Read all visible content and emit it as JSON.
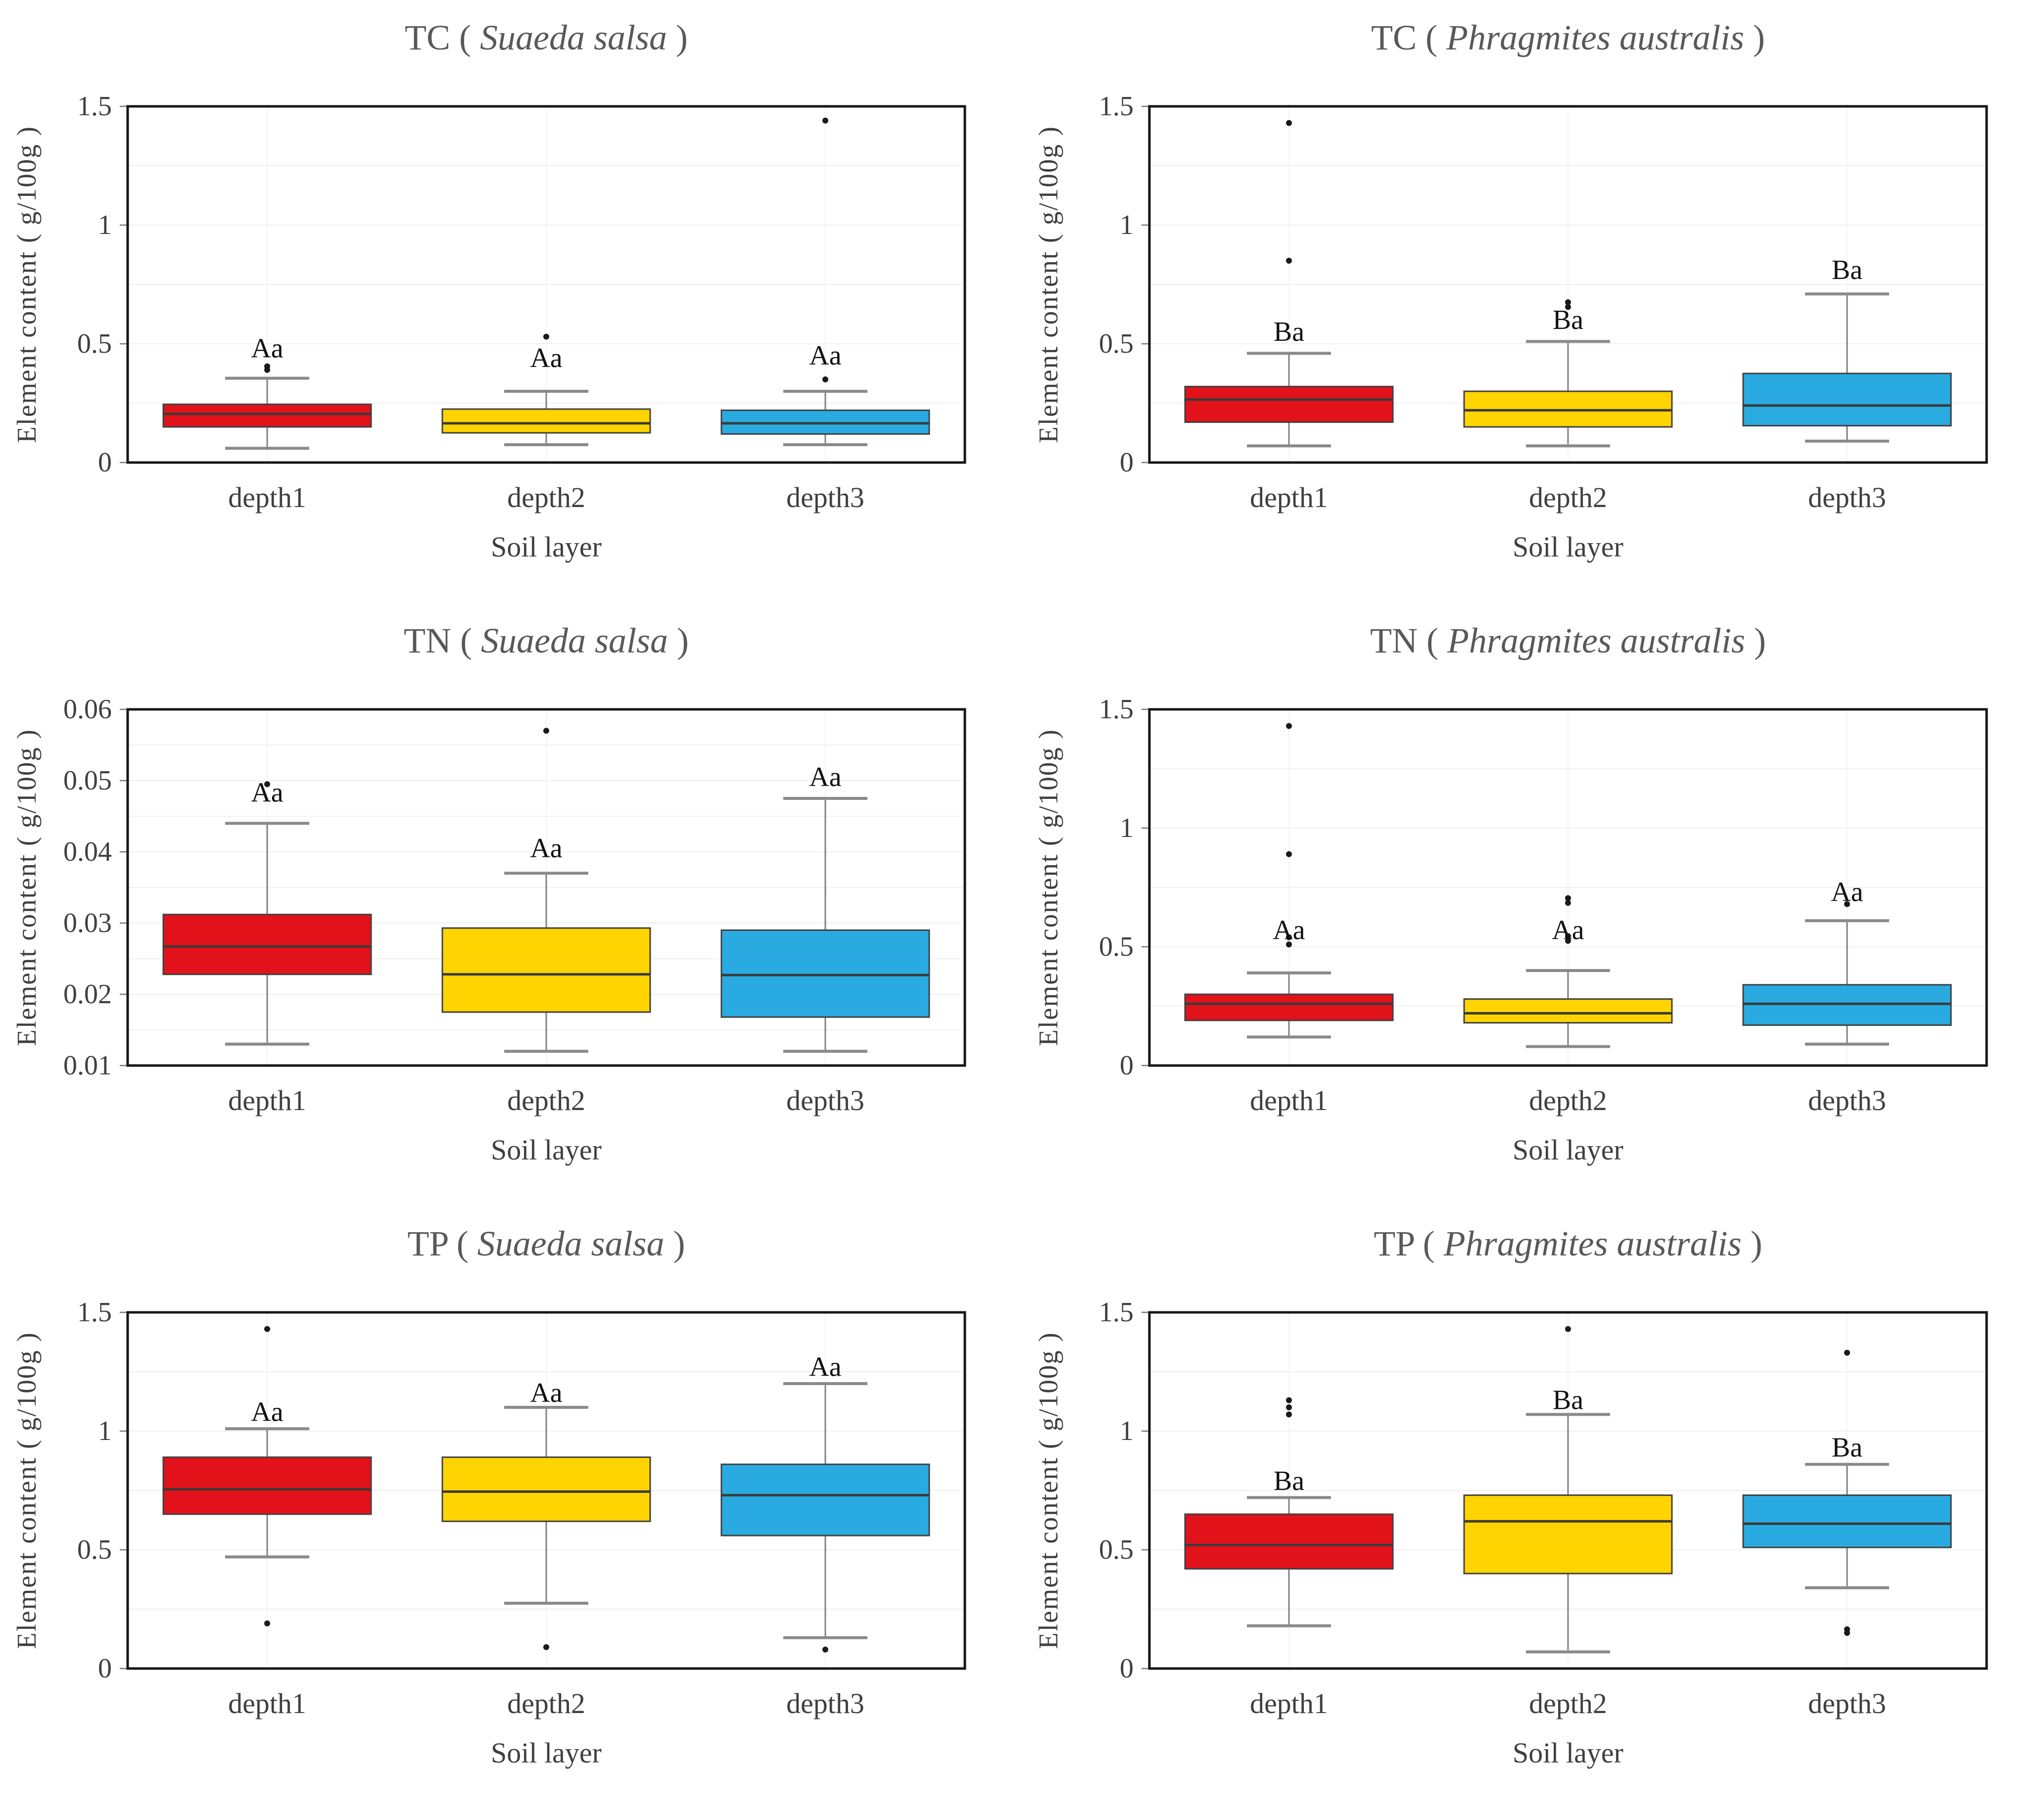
{
  "figure": {
    "xlabel": "Soil layer",
    "ylabel": "Element content ( g/100g )",
    "categories": [
      "depth1",
      "depth2",
      "depth3"
    ],
    "box_colors": [
      "#e2121b",
      "#ffd400",
      "#29abe2"
    ],
    "style_colors": {
      "title": "#595959",
      "axis_text": "#3f3f3f",
      "sig_label": "#111111",
      "box_stroke": "#404040",
      "median": "#3a3a3a",
      "whisker": "#7f7f7f",
      "border": "#161616",
      "gridline": "#efefef",
      "vgridline": "#f3f3f3",
      "outlier": "#1a1a1a"
    }
  },
  "chart_data": [
    {
      "type": "box",
      "title": {
        "element": "TC",
        "open": "(",
        "species": "Suaeda salsa",
        "close": ")"
      },
      "xlabel": "Soil layer",
      "ylabel": "Element content ( g/100g )",
      "ylim": [
        0,
        1.5
      ],
      "grid_step": 0.25,
      "yticks": [
        {
          "v": 0,
          "label": "0"
        },
        {
          "v": 0.5,
          "label": "0.5"
        },
        {
          "v": 1,
          "label": "1"
        },
        {
          "v": 1.5,
          "label": "1.5"
        }
      ],
      "categories": [
        "depth1",
        "depth2",
        "depth3"
      ],
      "boxes": [
        {
          "category": "depth1",
          "color": "#e2121b",
          "whisker_low": 0.06,
          "q1": 0.15,
          "median": 0.205,
          "q3": 0.245,
          "whisker_high": 0.355,
          "outliers": [
            0.39,
            0.405
          ],
          "sig_label": "Aa",
          "sig_label_y": 0.48
        },
        {
          "category": "depth2",
          "color": "#ffd400",
          "whisker_low": 0.075,
          "q1": 0.125,
          "median": 0.165,
          "q3": 0.225,
          "whisker_high": 0.3,
          "outliers": [
            0.53
          ],
          "sig_label": "Aa",
          "sig_label_y": 0.44
        },
        {
          "category": "depth3",
          "color": "#29abe2",
          "whisker_low": 0.075,
          "q1": 0.12,
          "median": 0.165,
          "q3": 0.22,
          "whisker_high": 0.3,
          "outliers": [
            0.35,
            1.44
          ],
          "sig_label": "Aa",
          "sig_label_y": 0.45
        }
      ]
    },
    {
      "type": "box",
      "title": {
        "element": "TC",
        "open": "(",
        "species": "Phragmites australis",
        "close": ")"
      },
      "xlabel": "Soil layer",
      "ylabel": "Element content ( g/100g )",
      "ylim": [
        0,
        1.5
      ],
      "grid_step": 0.25,
      "yticks": [
        {
          "v": 0,
          "label": "0"
        },
        {
          "v": 0.5,
          "label": "0.5"
        },
        {
          "v": 1,
          "label": "1"
        },
        {
          "v": 1.5,
          "label": "1.5"
        }
      ],
      "categories": [
        "depth1",
        "depth2",
        "depth3"
      ],
      "boxes": [
        {
          "category": "depth1",
          "color": "#e2121b",
          "whisker_low": 0.07,
          "q1": 0.17,
          "median": 0.265,
          "q3": 0.32,
          "whisker_high": 0.46,
          "outliers": [
            0.85,
            1.43
          ],
          "sig_label": "Ba",
          "sig_label_y": 0.55
        },
        {
          "category": "depth2",
          "color": "#ffd400",
          "whisker_low": 0.07,
          "q1": 0.15,
          "median": 0.22,
          "q3": 0.3,
          "whisker_high": 0.51,
          "outliers": [
            0.655,
            0.675
          ],
          "sig_label": "Ba",
          "sig_label_y": 0.6
        },
        {
          "category": "depth3",
          "color": "#29abe2",
          "whisker_low": 0.09,
          "q1": 0.155,
          "median": 0.24,
          "q3": 0.375,
          "whisker_high": 0.71,
          "outliers": [],
          "sig_label": "Ba",
          "sig_label_y": 0.81
        }
      ]
    },
    {
      "type": "box",
      "title": {
        "element": "TN",
        "open": "(",
        "species": "Suaeda salsa",
        "close": ")"
      },
      "xlabel": "Soil layer",
      "ylabel": "Element content ( g/100g )",
      "ylim": [
        0.01,
        0.06
      ],
      "grid_step": 0.005,
      "yticks": [
        {
          "v": 0.01,
          "label": "0.01"
        },
        {
          "v": 0.02,
          "label": "0.02"
        },
        {
          "v": 0.03,
          "label": "0.03"
        },
        {
          "v": 0.04,
          "label": "0.04"
        },
        {
          "v": 0.05,
          "label": "0.05"
        },
        {
          "v": 0.06,
          "label": "0.06"
        }
      ],
      "categories": [
        "depth1",
        "depth2",
        "depth3"
      ],
      "boxes": [
        {
          "category": "depth1",
          "color": "#e2121b",
          "whisker_low": 0.013,
          "q1": 0.0228,
          "median": 0.0267,
          "q3": 0.0312,
          "whisker_high": 0.044,
          "outliers": [
            0.0495
          ],
          "sig_label": "Aa",
          "sig_label_y": 0.0483
        },
        {
          "category": "depth2",
          "color": "#ffd400",
          "whisker_low": 0.012,
          "q1": 0.0175,
          "median": 0.0228,
          "q3": 0.0293,
          "whisker_high": 0.037,
          "outliers": [
            0.057
          ],
          "sig_label": "Aa",
          "sig_label_y": 0.0405
        },
        {
          "category": "depth3",
          "color": "#29abe2",
          "whisker_low": 0.012,
          "q1": 0.0168,
          "median": 0.0227,
          "q3": 0.029,
          "whisker_high": 0.0475,
          "outliers": [],
          "sig_label": "Aa",
          "sig_label_y": 0.0505
        }
      ]
    },
    {
      "type": "box",
      "title": {
        "element": "TN",
        "open": "(",
        "species": "Phragmites australis",
        "close": ")"
      },
      "xlabel": "Soil layer",
      "ylabel": "Element content ( g/100g )",
      "ylim": [
        0,
        1.5
      ],
      "grid_step": 0.25,
      "yticks": [
        {
          "v": 0,
          "label": "0"
        },
        {
          "v": 0.5,
          "label": "0.5"
        },
        {
          "v": 1,
          "label": "1"
        },
        {
          "v": 1.5,
          "label": "1.5"
        }
      ],
      "categories": [
        "depth1",
        "depth2",
        "depth3"
      ],
      "boxes": [
        {
          "category": "depth1",
          "color": "#e2121b",
          "whisker_low": 0.12,
          "q1": 0.19,
          "median": 0.26,
          "q3": 0.3,
          "whisker_high": 0.39,
          "outliers": [
            0.51,
            0.54,
            0.89,
            1.43
          ],
          "sig_label": "Aa",
          "sig_label_y": 0.57
        },
        {
          "category": "depth2",
          "color": "#ffd400",
          "whisker_low": 0.08,
          "q1": 0.18,
          "median": 0.22,
          "q3": 0.28,
          "whisker_high": 0.4,
          "outliers": [
            0.525,
            0.545,
            0.685,
            0.705
          ],
          "sig_label": "Aa",
          "sig_label_y": 0.57
        },
        {
          "category": "depth3",
          "color": "#29abe2",
          "whisker_low": 0.09,
          "q1": 0.17,
          "median": 0.26,
          "q3": 0.34,
          "whisker_high": 0.61,
          "outliers": [
            0.68
          ],
          "sig_label": "Aa",
          "sig_label_y": 0.73
        }
      ]
    },
    {
      "type": "box",
      "title": {
        "element": "TP",
        "open": "(",
        "species": "Suaeda salsa",
        "close": ")"
      },
      "xlabel": "Soil layer",
      "ylabel": "Element content ( g/100g )",
      "ylim": [
        0,
        1.5
      ],
      "grid_step": 0.25,
      "yticks": [
        {
          "v": 0,
          "label": "0"
        },
        {
          "v": 0.5,
          "label": "0.5"
        },
        {
          "v": 1,
          "label": "1"
        },
        {
          "v": 1.5,
          "label": "1.5"
        }
      ],
      "categories": [
        "depth1",
        "depth2",
        "depth3"
      ],
      "boxes": [
        {
          "category": "depth1",
          "color": "#e2121b",
          "whisker_low": 0.47,
          "q1": 0.65,
          "median": 0.755,
          "q3": 0.89,
          "whisker_high": 1.01,
          "outliers": [
            0.19,
            1.43
          ],
          "sig_label": "Aa",
          "sig_label_y": 1.08
        },
        {
          "category": "depth2",
          "color": "#ffd400",
          "whisker_low": 0.275,
          "q1": 0.62,
          "median": 0.745,
          "q3": 0.89,
          "whisker_high": 1.1,
          "outliers": [
            0.09
          ],
          "sig_label": "Aa",
          "sig_label_y": 1.16
        },
        {
          "category": "depth3",
          "color": "#29abe2",
          "whisker_low": 0.13,
          "q1": 0.56,
          "median": 0.73,
          "q3": 0.86,
          "whisker_high": 1.2,
          "outliers": [
            0.08
          ],
          "sig_label": "Aa",
          "sig_label_y": 1.27
        }
      ]
    },
    {
      "type": "box",
      "title": {
        "element": "TP",
        "open": "(",
        "species": "Phragmites australis",
        "close": ")"
      },
      "xlabel": "Soil layer",
      "ylabel": "Element content ( g/100g )",
      "ylim": [
        0,
        1.5
      ],
      "grid_step": 0.25,
      "yticks": [
        {
          "v": 0,
          "label": "0"
        },
        {
          "v": 0.5,
          "label": "0.5"
        },
        {
          "v": 1,
          "label": "1"
        },
        {
          "v": 1.5,
          "label": "1.5"
        }
      ],
      "categories": [
        "depth1",
        "depth2",
        "depth3"
      ],
      "boxes": [
        {
          "category": "depth1",
          "color": "#e2121b",
          "whisker_low": 0.18,
          "q1": 0.42,
          "median": 0.52,
          "q3": 0.65,
          "whisker_high": 0.72,
          "outliers": [
            1.07,
            1.1,
            1.13
          ],
          "sig_label": "Ba",
          "sig_label_y": 0.79
        },
        {
          "category": "depth2",
          "color": "#ffd400",
          "whisker_low": 0.07,
          "q1": 0.4,
          "median": 0.62,
          "q3": 0.73,
          "whisker_high": 1.07,
          "outliers": [
            1.43
          ],
          "sig_label": "Ba",
          "sig_label_y": 1.13
        },
        {
          "category": "depth3",
          "color": "#29abe2",
          "whisker_low": 0.34,
          "q1": 0.51,
          "median": 0.61,
          "q3": 0.73,
          "whisker_high": 0.86,
          "outliers": [
            0.15,
            0.165,
            1.33
          ],
          "sig_label": "Ba",
          "sig_label_y": 0.93
        }
      ]
    }
  ]
}
